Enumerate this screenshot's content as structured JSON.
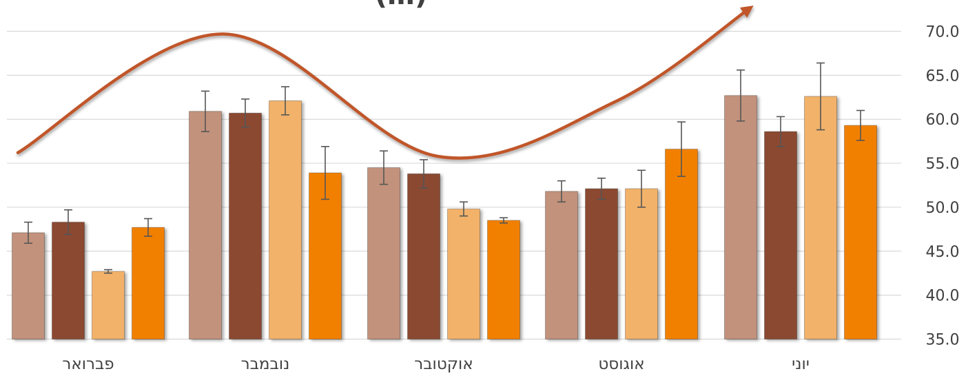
{
  "chart_data": {
    "type": "bar",
    "title_fragment": "(…)",
    "categories": [
      "פברואר",
      "נובמבר",
      "אוקטובר",
      "אוגוסט",
      "יוני"
    ],
    "y_ticks": [
      "35.0",
      "40.0",
      "45.0",
      "50.0",
      "55.0",
      "60.0",
      "65.0",
      "70.0"
    ],
    "ylim": [
      35,
      72
    ],
    "y_axis_side": "right",
    "grid": true,
    "legend": "none",
    "series": [
      {
        "color": "#c2927c",
        "values": [
          47.1,
          60.9,
          54.5,
          51.8,
          62.7
        ],
        "error": [
          1.2,
          2.3,
          1.9,
          1.2,
          2.9
        ]
      },
      {
        "color": "#8b4a30",
        "values": [
          48.3,
          60.7,
          53.8,
          52.1,
          58.6
        ],
        "error": [
          1.4,
          1.6,
          1.6,
          1.2,
          1.7
        ]
      },
      {
        "color": "#f2b26a",
        "values": [
          42.7,
          62.1,
          49.8,
          52.1,
          62.6
        ],
        "error": [
          0.2,
          1.6,
          0.8,
          2.1,
          3.8
        ]
      },
      {
        "color": "#f28000",
        "values": [
          47.7,
          53.9,
          48.5,
          56.6,
          59.3
        ],
        "error": [
          1.0,
          3.0,
          0.3,
          3.1,
          1.7
        ]
      }
    ],
    "trend_arrow": {
      "color": "#c0562a",
      "points": [
        [
          0,
          56.2
        ],
        [
          1.15,
          69.7
        ],
        [
          2.35,
          55.8
        ],
        [
          3.35,
          62.0
        ],
        [
          4.1,
          72.6
        ]
      ]
    }
  }
}
